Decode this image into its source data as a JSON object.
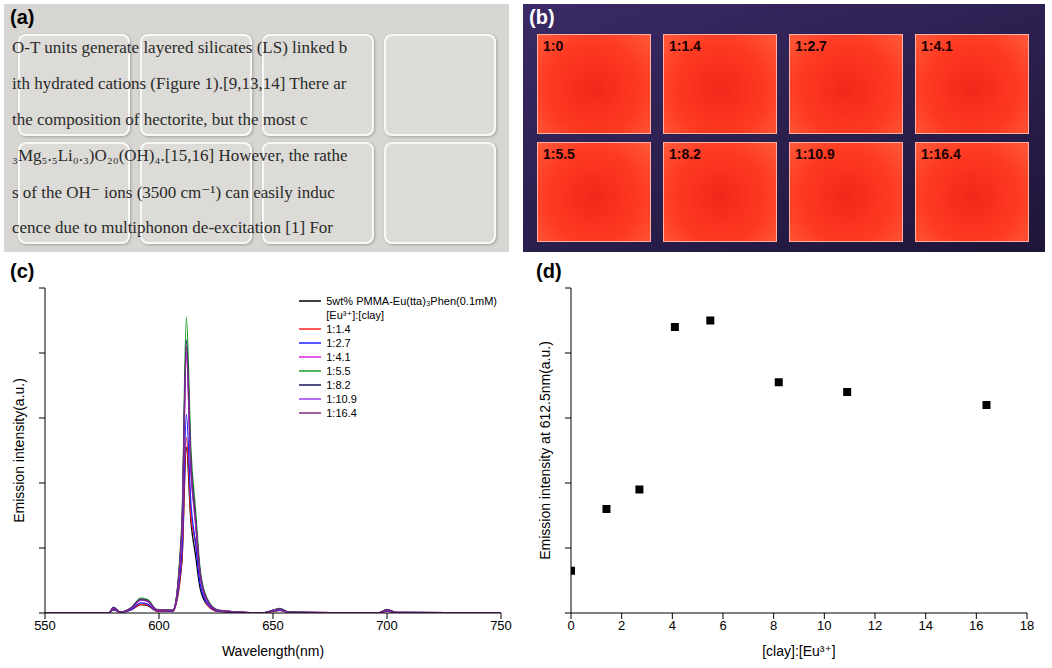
{
  "panels": [
    {
      "title": "(a)",
      "type": "photo",
      "text_lines": [
        "O-T units generate layered silicates (LS) linked b",
        "ith hydrated cations (Figure 1).[9,13,14] There ar",
        "the composition of hectorite, but the most c",
        "₃Mg₅.₅Li₀.₃)O₂₀(OH)₄.[15,16] However, the rathe",
        "s of the OH⁻ ions (3500 cm⁻¹) can easily induc",
        "cence due to multiphonon de-excitation [1] For"
      ]
    },
    {
      "title": "(b)",
      "type": "photo",
      "sample_labels": [
        "1:0",
        "1:1.4",
        "1:2.7",
        "1:4.1",
        "1:5.5",
        "1:8.2",
        "1:10.9",
        "1:16.4"
      ]
    }
  ],
  "chart_data": [
    {
      "type": "line",
      "title": "(c)",
      "x_label": "Wavelength(nm)",
      "y_label": "Emission intensity(a.u.)",
      "x": [
        550,
        578,
        580,
        583,
        588,
        592,
        595,
        599,
        606,
        610,
        612,
        614,
        616,
        618,
        621,
        626,
        645,
        650,
        653,
        657,
        696,
        700,
        704,
        750
      ],
      "xlim": [
        550,
        750
      ],
      "xticks": [
        550,
        600,
        650,
        700,
        750
      ],
      "ylim": [
        0,
        100
      ],
      "yticks": [
        0,
        20,
        40,
        60,
        80,
        100
      ],
      "tick_labels": "x",
      "legend": "upper right",
      "legend_title": "[Eu³⁺]:[clay]",
      "series": [
        {
          "name": "5wt% PMMA-Eu(tta)₃Phen(0.1mM)",
          "color": "#000000",
          "values": [
            0,
            0,
            1.0,
            0.2,
            1.0,
            2.6,
            2.3,
            0.6,
            0.5,
            15.3,
            51,
            28.1,
            17.9,
            7.7,
            2.6,
            0.5,
            0,
            0.5,
            0.8,
            0.2,
            0,
            0.6,
            0.1,
            0
          ]
        },
        {
          "name": "1:1.4",
          "color": "#ff2020",
          "values": [
            0,
            0,
            1.1,
            0.2,
            1.1,
            2.7,
            2.4,
            0.6,
            0.5,
            16.2,
            54,
            29.7,
            22,
            12,
            2.7,
            0.5,
            0,
            0.5,
            0.8,
            0.2,
            0,
            0.6,
            0.1,
            0
          ]
        },
        {
          "name": "1:2.7",
          "color": "#1f1fff",
          "values": [
            0,
            0,
            1.2,
            0.2,
            1.2,
            3.1,
            2.7,
            0.7,
            0.6,
            18.3,
            61,
            33.6,
            21.4,
            9.2,
            3.1,
            0.6,
            0,
            0.6,
            0.9,
            0.2,
            0,
            0.7,
            0.1,
            0
          ]
        },
        {
          "name": "1:4.1",
          "color": "#e020e0",
          "values": [
            0,
            0,
            1.6,
            0.2,
            1.6,
            4.0,
            3.6,
            0.9,
            0.8,
            23.7,
            79,
            43.5,
            27.7,
            11.9,
            4.0,
            0.8,
            0,
            0.8,
            1.2,
            0.2,
            0,
            0.9,
            0.2,
            0
          ]
        },
        {
          "name": "1:5.5",
          "color": "#1a9a2a",
          "values": [
            0,
            0,
            1.8,
            0.3,
            1.8,
            4.6,
            4.1,
            1.1,
            0.9,
            27.3,
            91,
            50.1,
            31.9,
            13.7,
            4.6,
            0.9,
            0,
            0.9,
            1.4,
            0.3,
            0,
            1.1,
            0.2,
            0
          ]
        },
        {
          "name": "1:8.2",
          "color": "#15155a",
          "values": [
            0,
            0,
            1.7,
            0.3,
            1.7,
            4.2,
            3.8,
            1.0,
            0.8,
            25.2,
            84,
            46.2,
            29.4,
            12.6,
            4.2,
            0.8,
            0,
            0.8,
            1.3,
            0.3,
            0,
            1.0,
            0.2,
            0
          ]
        },
        {
          "name": "1:10.9",
          "color": "#9b3cf0",
          "values": [
            0,
            0,
            1.6,
            0.2,
            1.6,
            4.0,
            3.6,
            1.0,
            0.8,
            24.0,
            80,
            44.0,
            28.0,
            12.0,
            4.0,
            0.8,
            0,
            0.8,
            1.2,
            0.2,
            0,
            1.0,
            0.2,
            0
          ]
        },
        {
          "name": "1:16.4",
          "color": "#7a2a7a",
          "values": [
            0,
            0,
            1.6,
            0.2,
            1.6,
            4.1,
            3.7,
            1.0,
            0.8,
            24.6,
            82,
            45.1,
            28.7,
            12.3,
            4.1,
            0.8,
            0,
            0.8,
            1.2,
            0.2,
            0,
            1.0,
            0.2,
            0
          ]
        }
      ]
    },
    {
      "type": "scatter",
      "title": "(d)",
      "x_label": "[clay]:[Eu³⁺]",
      "y_label": "Emission intensity at 612.5nm(a.u.)",
      "x": [
        0,
        1.4,
        2.7,
        4.1,
        5.5,
        8.2,
        10.9,
        16.4
      ],
      "values": [
        1.3,
        3.2,
        3.8,
        8.8,
        9.0,
        7.1,
        6.8,
        6.4
      ],
      "xlim": [
        0,
        18
      ],
      "xticks": [
        0,
        2,
        4,
        6,
        8,
        10,
        12,
        14,
        16,
        18
      ],
      "ylim": [
        0,
        10
      ],
      "yticks": [
        0,
        2,
        4,
        6,
        8,
        10
      ],
      "tick_labels": "x",
      "color": "#000000",
      "marker": "square"
    }
  ]
}
